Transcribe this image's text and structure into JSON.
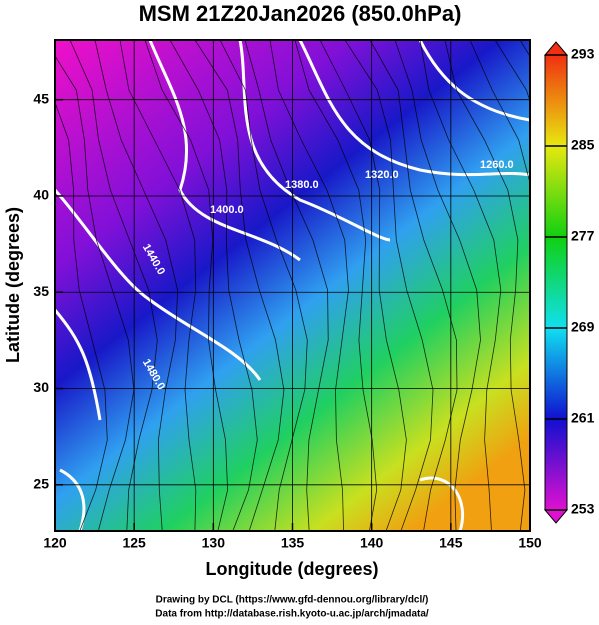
{
  "chart_data": {
    "type": "contour",
    "title": "MSM 21Z20Jan2026 (850.0hPa)",
    "xlabel": "Longitude (degrees)",
    "ylabel": "Latitude  (degrees)",
    "xlim": [
      120,
      150
    ],
    "ylim": [
      22.6,
      48.1
    ],
    "xticks": [
      120,
      125,
      130,
      135,
      140,
      145,
      150
    ],
    "yticks": [
      25,
      30,
      35,
      40,
      45
    ],
    "grid": true,
    "contour_labels": [
      "1260.0",
      "1320.0",
      "1380.0",
      "1400.0",
      "1440.0",
      "1480.0"
    ],
    "colorbar": {
      "lim": [
        253,
        293
      ],
      "ticks": [
        253,
        261,
        269,
        277,
        285,
        293
      ],
      "colors": [
        "#e010d0",
        "#1010d0",
        "#10e0f0",
        "#10d010",
        "#e8e810",
        "#f03010"
      ]
    },
    "footer": [
      "Drawing by DCL (https://www.gfd-dennou.org/library/dcl/)",
      "Data from http://database.rish.kyoto-u.ac.jp/arch/jmadata/"
    ]
  }
}
